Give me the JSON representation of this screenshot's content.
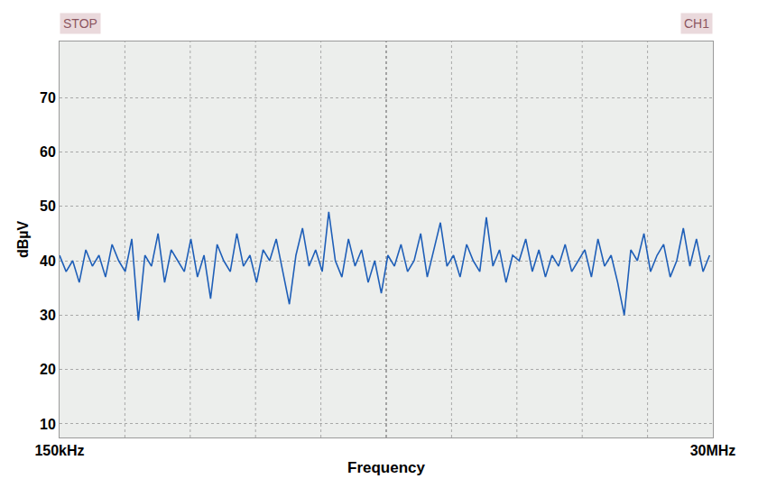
{
  "chart_data": {
    "type": "line",
    "x_label": "Frequency",
    "y_label": "dBµV",
    "annotations": [
      "STOP",
      "CH1"
    ],
    "color": "#1f5fb8",
    "grid": true,
    "xlim": [
      0.15,
      30
    ],
    "xticks": [
      {
        "value": 0.15,
        "label": "150kHz"
      },
      {
        "value": 30,
        "label": "30MHz"
      }
    ],
    "ylim": [
      7.5,
      80.3
    ],
    "yticks": [
      10,
      20,
      30,
      40,
      50,
      60,
      70
    ],
    "x": [
      0.15,
      0.45,
      0.75,
      1.05,
      1.35,
      1.65,
      1.95,
      2.25,
      2.55,
      2.85,
      3.15,
      3.45,
      3.75,
      4.05,
      4.35,
      4.65,
      4.95,
      5.25,
      5.55,
      5.85,
      6.15,
      6.45,
      6.75,
      7.05,
      7.35,
      7.65,
      7.95,
      8.25,
      8.55,
      8.85,
      9.15,
      9.45,
      9.75,
      10.05,
      10.35,
      10.65,
      10.95,
      11.25,
      11.55,
      11.85,
      12.15,
      12.45,
      12.75,
      13.05,
      13.35,
      13.65,
      13.95,
      14.25,
      14.55,
      14.85,
      15.15,
      15.45,
      15.75,
      16.05,
      16.35,
      16.65,
      16.95,
      17.25,
      17.55,
      17.85,
      18.15,
      18.45,
      18.75,
      19.05,
      19.35,
      19.65,
      19.95,
      20.25,
      20.55,
      20.85,
      21.15,
      21.45,
      21.75,
      22.05,
      22.35,
      22.65,
      22.95,
      23.25,
      23.55,
      23.85,
      24.15,
      24.45,
      24.75,
      25.05,
      25.35,
      25.65,
      25.95,
      26.25,
      26.55,
      26.85,
      27.15,
      27.45,
      27.75,
      28.05,
      28.35,
      28.65,
      28.95,
      29.25,
      29.55,
      29.85
    ],
    "values": [
      41,
      38,
      40,
      36,
      42,
      39,
      41,
      37,
      43,
      40,
      38,
      44,
      29,
      41,
      39,
      45,
      36,
      42,
      40,
      38,
      44,
      37,
      41,
      33,
      43,
      40,
      38,
      45,
      39,
      41,
      36,
      42,
      40,
      44,
      38,
      32,
      41,
      46,
      39,
      42,
      38,
      49,
      40,
      37,
      44,
      39,
      42,
      36,
      40,
      34,
      41,
      39,
      43,
      38,
      40,
      45,
      37,
      42,
      47,
      39,
      41,
      37,
      43,
      40,
      38,
      48,
      39,
      42,
      36,
      41,
      40,
      44,
      38,
      42,
      37,
      41,
      39,
      43,
      38,
      40,
      42,
      37,
      44,
      39,
      41,
      36,
      30,
      42,
      40,
      45,
      38,
      41,
      43,
      37,
      40,
      46,
      39,
      44,
      38,
      41
    ]
  }
}
